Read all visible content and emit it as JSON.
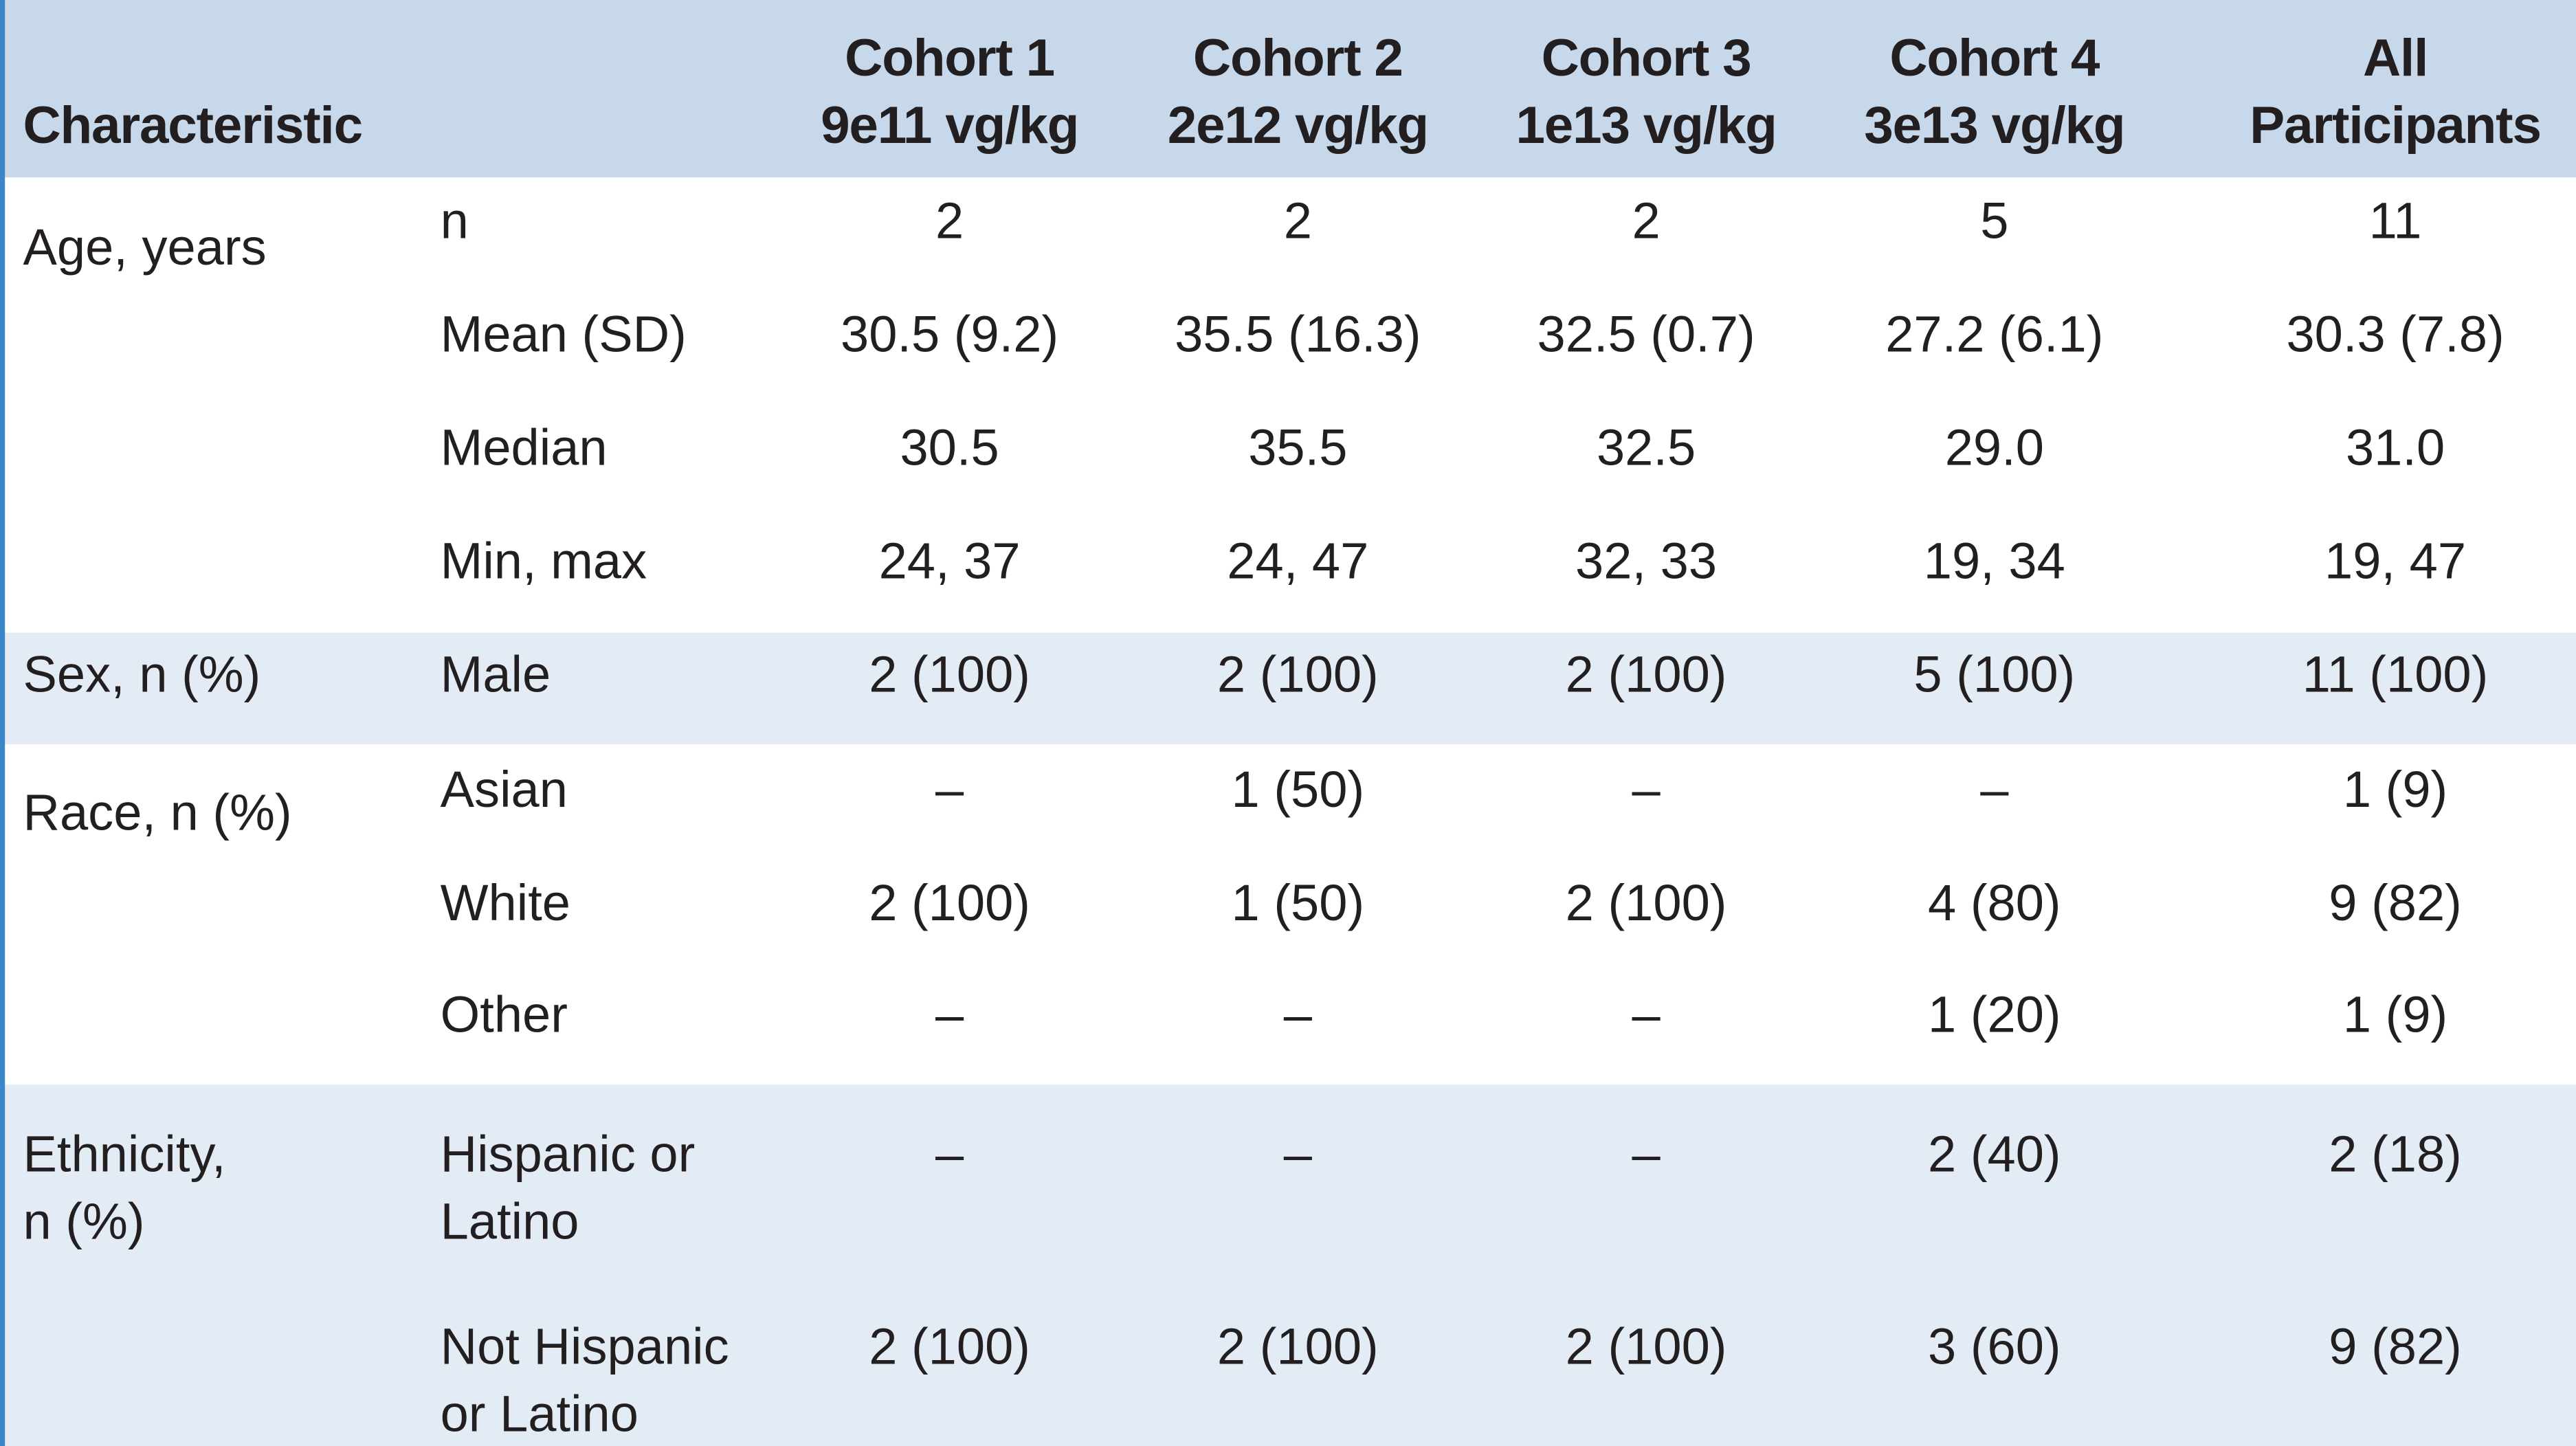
{
  "header": {
    "title": "Characteristic",
    "columns": [
      [
        "Cohort 1",
        "9e11 vg/kg"
      ],
      [
        "Cohort 2",
        "2e12 vg/kg"
      ],
      [
        "Cohort 3",
        "1e13 vg/kg"
      ],
      [
        "Cohort 4",
        "3e13 vg/kg"
      ],
      [
        "All",
        "Participants"
      ]
    ]
  },
  "groups": [
    {
      "label": [
        "Age, years"
      ],
      "rows": [
        {
          "label": [
            "n"
          ],
          "values": [
            "2",
            "2",
            "2",
            "5",
            "11"
          ]
        },
        {
          "label": [
            "Mean (SD)"
          ],
          "values": [
            "30.5 (9.2)",
            "35.5 (16.3)",
            "32.5 (0.7)",
            "27.2 (6.1)",
            "30.3 (7.8)"
          ]
        },
        {
          "label": [
            "Median"
          ],
          "values": [
            "30.5",
            "35.5",
            "32.5",
            "29.0",
            "31.0"
          ]
        },
        {
          "label": [
            "Min, max"
          ],
          "values": [
            "24, 37",
            "24, 47",
            "32, 33",
            "19, 34",
            "19, 47"
          ]
        }
      ]
    },
    {
      "label": [
        "Sex, n (%)"
      ],
      "rows": [
        {
          "label": [
            "Male"
          ],
          "values": [
            "2 (100)",
            "2 (100)",
            "2 (100)",
            "5 (100)",
            "11 (100)"
          ]
        }
      ]
    },
    {
      "label": [
        "Race, n (%)"
      ],
      "rows": [
        {
          "label": [
            "Asian"
          ],
          "values": [
            "–",
            "1 (50)",
            "–",
            "–",
            "1 (9)"
          ]
        },
        {
          "label": [
            "White"
          ],
          "values": [
            "2 (100)",
            "1 (50)",
            "2 (100)",
            "4 (80)",
            "9 (82)"
          ]
        },
        {
          "label": [
            "Other"
          ],
          "values": [
            "–",
            "–",
            "–",
            "1 (20)",
            "1 (9)"
          ]
        }
      ]
    },
    {
      "label": [
        "Ethnicity,",
        "n (%)"
      ],
      "rows": [
        {
          "label": [
            "Hispanic or",
            "Latino"
          ],
          "values": [
            "–",
            "–",
            "–",
            "2 (40)",
            "2 (18)"
          ]
        },
        {
          "label": [
            "Not Hispanic",
            "or Latino"
          ],
          "values": [
            "2 (100)",
            "2 (100)",
            "2 (100)",
            "3 (60)",
            "9 (82)"
          ]
        }
      ]
    }
  ]
}
